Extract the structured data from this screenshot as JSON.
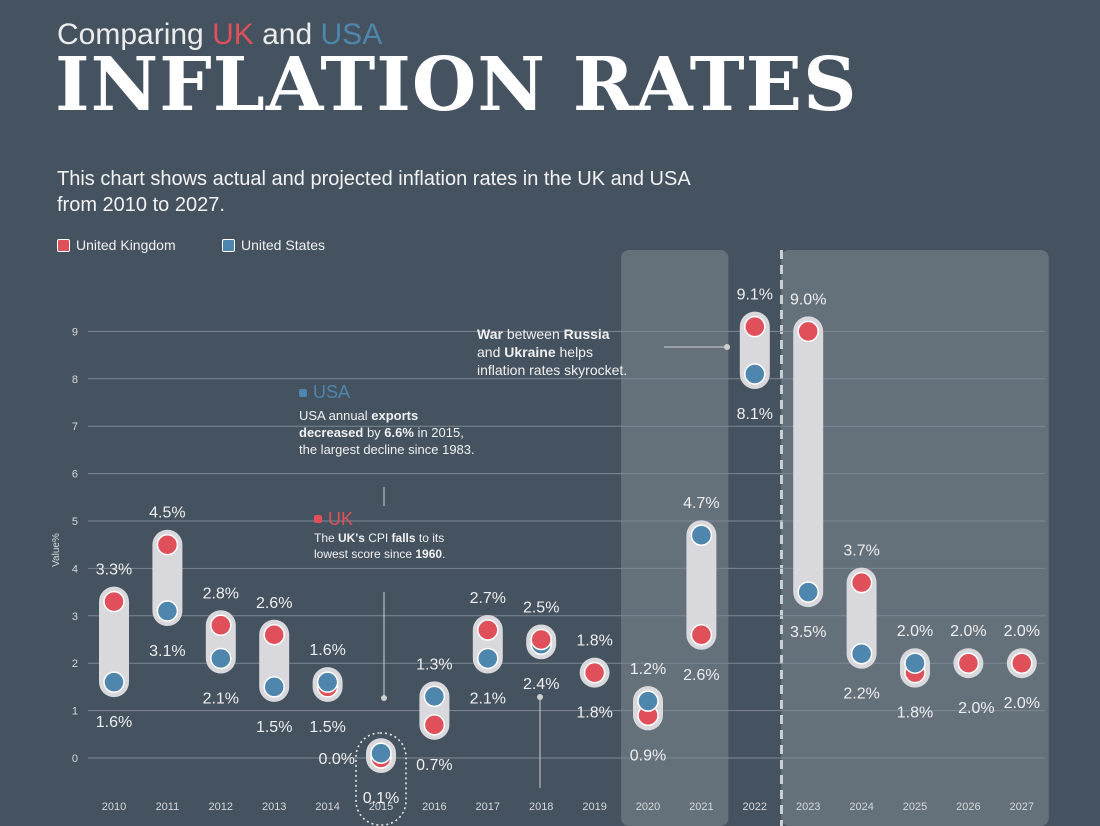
{
  "header": {
    "subtitle_prefix": "Comparing",
    "subtitle_uk": "UK",
    "subtitle_and": "and",
    "subtitle_usa": "USA",
    "title": "INFLATION RATES",
    "description": "This chart shows actual and projected inflation rates in the UK and USA from 2010 to 2027."
  },
  "legend": [
    {
      "label": "United Kingdom",
      "color": "#e0505a"
    },
    {
      "label": "United States",
      "color": "#4e86ad"
    }
  ],
  "colors": {
    "uk": "#e0505a",
    "usa": "#4e86ad",
    "background": "#45525f",
    "shade": "#6a757f",
    "connector": "#d9d8dc"
  },
  "annotations": {
    "war": {
      "t1": "War",
      "t2": " between ",
      "t3": "Russia",
      "t4": "and ",
      "t5": "Ukraine",
      "t6": " helps",
      "t7": "inflation rates skyrocket."
    },
    "usa": {
      "head": "USA",
      "l1a": "USA annual ",
      "l1b": "exports",
      "l2a": "decreased",
      "l2b": " by ",
      "l2c": "6.6%",
      "l2d": " in 2015,",
      "l3": "the largest decline since 1983."
    },
    "uk": {
      "head": "UK",
      "l1a": "The ",
      "l1b": "UK's",
      "l1c": " CPI ",
      "l1d": "falls",
      "l1e": " to its",
      "l2a": "lowest score since ",
      "l2b": "1960",
      "l2c": "."
    }
  },
  "chart_data": {
    "type": "scatter",
    "title": "Inflation rates UK vs USA",
    "ylabel": "Value%",
    "xlabel": "",
    "ylim": [
      0,
      9
    ],
    "yticks": [
      0,
      1,
      2,
      3,
      4,
      5,
      6,
      7,
      8,
      9
    ],
    "grid": true,
    "categories": [
      "2010",
      "2011",
      "2012",
      "2013",
      "2014",
      "2015",
      "2016",
      "2017",
      "2018",
      "2019",
      "2020",
      "2021",
      "2022",
      "2023",
      "2024",
      "2025",
      "2026",
      "2027"
    ],
    "series": [
      {
        "name": "United Kingdom",
        "values": [
          3.3,
          4.5,
          2.8,
          2.6,
          1.5,
          0.0,
          0.7,
          2.7,
          2.5,
          1.8,
          0.9,
          2.6,
          9.1,
          9.0,
          3.7,
          1.8,
          2.0,
          2.0
        ]
      },
      {
        "name": "United States",
        "values": [
          1.6,
          3.1,
          2.1,
          1.5,
          1.6,
          0.1,
          1.3,
          2.1,
          2.4,
          1.8,
          1.2,
          4.7,
          8.1,
          3.5,
          2.2,
          2.0,
          2.0,
          2.0
        ]
      }
    ],
    "top_labels": [
      "3.3%",
      "4.5%",
      "2.8%",
      "2.6%",
      "1.6%",
      "",
      "1.3%",
      "2.7%",
      "2.5%",
      "1.8%",
      "1.2%",
      "4.7%",
      "9.1%",
      "9.0%",
      "3.7%",
      "2.0%",
      "2.0%",
      "2.0%"
    ],
    "bottom_labels": [
      "1.6%",
      "3.1%",
      "2.1%",
      "1.5%",
      "1.5%",
      "0.1%",
      "0.7%",
      "2.1%",
      "2.4%",
      "1.8%",
      "0.9%",
      "2.6%",
      "8.1%",
      "3.5%",
      "2.2%",
      "1.8%",
      "",
      "2.0%"
    ],
    "side_labels": [
      {
        "year": "2015",
        "text": "0.0%"
      },
      {
        "year": "2026",
        "text": "2.0%"
      }
    ],
    "shaded_ranges": [
      [
        "2020",
        "2021"
      ],
      [
        "2023",
        "2027"
      ]
    ],
    "projection_start": "2023"
  }
}
